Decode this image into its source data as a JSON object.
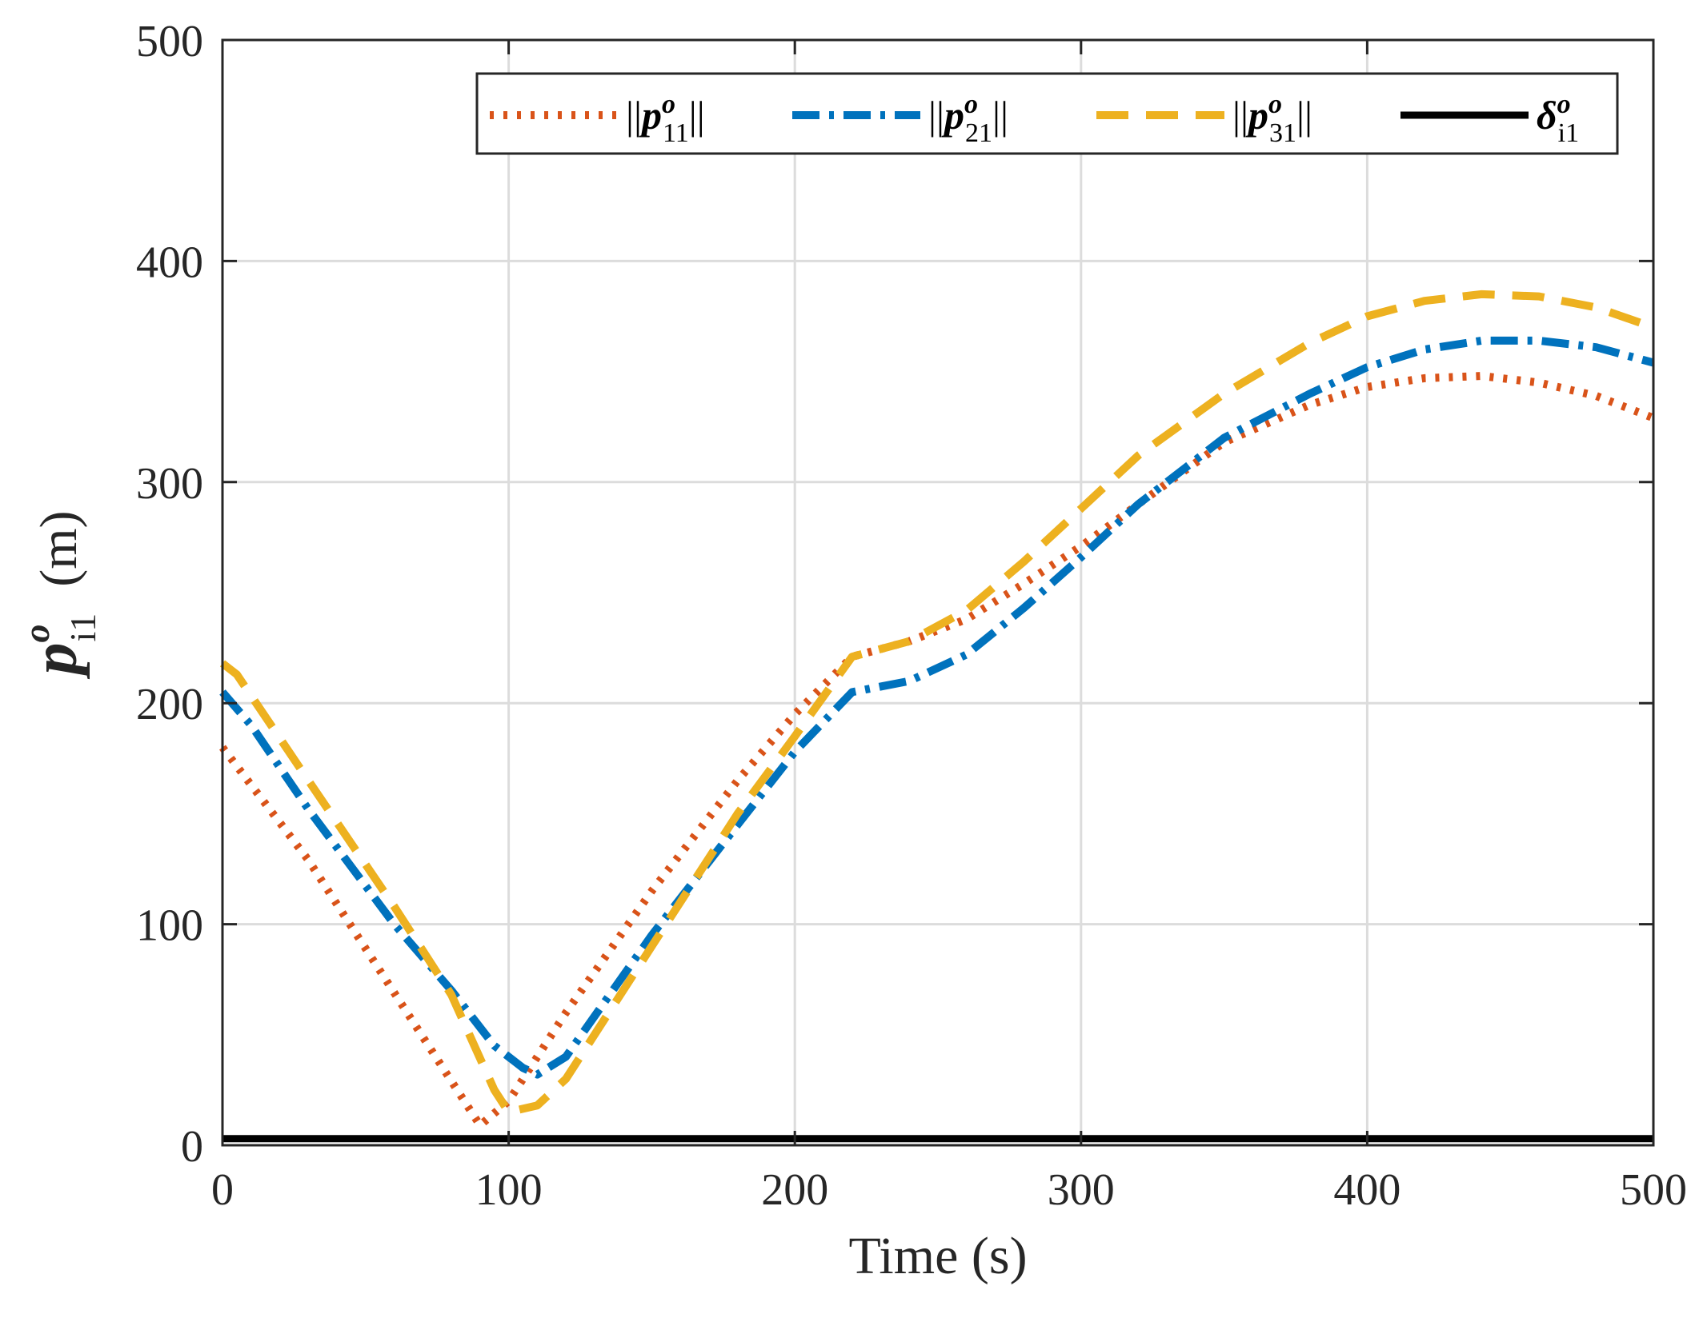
{
  "chart_data": {
    "type": "line",
    "title": "",
    "xlabel": "Time (s)",
    "ylabel": {
      "symbol": "p",
      "superscript": "o",
      "subscript": "i1",
      "unit": "(m)"
    },
    "xlim": [
      0,
      500
    ],
    "ylim": [
      0,
      500
    ],
    "xticks": [
      "0",
      "100",
      "200",
      "300",
      "400",
      "500"
    ],
    "yticks": [
      "0",
      "100",
      "200",
      "300",
      "400",
      "500"
    ],
    "grid": true,
    "legend_position": "top-right",
    "colors": {
      "axis": "#262626",
      "grid": "#dcdcdc",
      "background": "#ffffff"
    },
    "series": [
      {
        "name": "||p11o||",
        "legend": {
          "prefix": "||",
          "symbol": "p",
          "superscript": "o",
          "subscript": "11",
          "suffix": "||"
        },
        "color": "#D95319",
        "style": "dotted",
        "x": [
          0,
          30,
          60,
          90,
          100,
          120,
          150,
          180,
          200,
          220,
          240,
          260,
          280,
          300,
          320,
          350,
          380,
          400,
          420,
          440,
          460,
          480,
          500
        ],
        "y": [
          180,
          129,
          69,
          9,
          20,
          60,
          115,
          165,
          195,
          221,
          228,
          238,
          254,
          271,
          290,
          318,
          335,
          343,
          347,
          348,
          345,
          339,
          329
        ]
      },
      {
        "name": "||p21o||",
        "legend": {
          "prefix": "||",
          "symbol": "p",
          "superscript": "o",
          "subscript": "21",
          "suffix": "||"
        },
        "color": "#0072BD",
        "style": "dashdot",
        "x": [
          0,
          10,
          30,
          60,
          80,
          95,
          105,
          110,
          120,
          150,
          180,
          200,
          220,
          240,
          260,
          280,
          300,
          320,
          350,
          380,
          400,
          420,
          440,
          460,
          480,
          500
        ],
        "y": [
          205,
          190,
          152,
          100,
          70,
          45,
          35,
          32,
          40,
          95,
          145,
          178,
          205,
          210,
          222,
          243,
          266,
          290,
          320,
          340,
          352,
          360,
          364,
          364,
          361,
          354
        ]
      },
      {
        "name": "||p31o||",
        "legend": {
          "prefix": "||",
          "symbol": "p",
          "superscript": "o",
          "subscript": "31",
          "suffix": "||"
        },
        "color": "#EDB120",
        "style": "dashed",
        "x": [
          0,
          5,
          30,
          60,
          80,
          95,
          100,
          110,
          120,
          150,
          180,
          200,
          220,
          240,
          260,
          280,
          300,
          320,
          350,
          380,
          400,
          420,
          440,
          460,
          480,
          500
        ],
        "y": [
          218,
          213,
          165,
          108,
          68,
          25,
          15,
          18,
          30,
          90,
          150,
          185,
          221,
          228,
          242,
          264,
          288,
          312,
          340,
          363,
          375,
          382,
          385,
          384,
          379,
          370
        ]
      },
      {
        "name": "δi1o",
        "legend": {
          "prefix": "",
          "symbol": "δ",
          "superscript": "o",
          "subscript": "i1",
          "suffix": ""
        },
        "color": "#000000",
        "style": "solid",
        "x": [
          0,
          500
        ],
        "y": [
          3,
          3
        ]
      }
    ]
  }
}
